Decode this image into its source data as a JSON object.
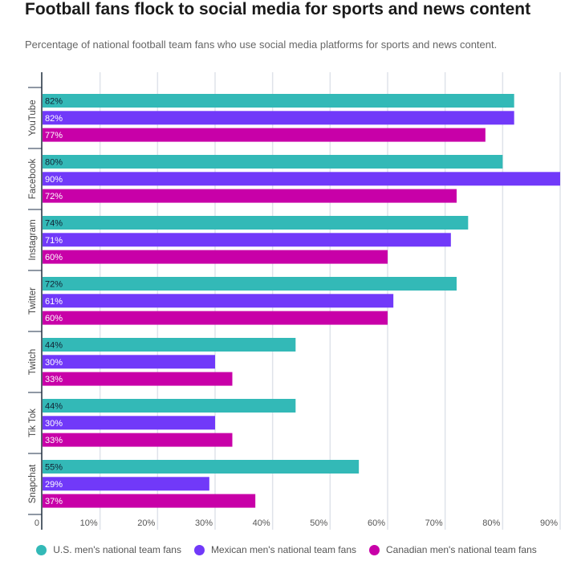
{
  "chart_data": {
    "type": "bar",
    "orientation": "horizontal",
    "title": "Football fans flock to social media for sports and news content",
    "subtitle": "Percentage of national football team fans who use social media platforms for sports and news content.",
    "categories": [
      "YouTube",
      "Facebook",
      "Instagram",
      "Twitter",
      "Twitch",
      "Tik Tok",
      "Snapchat"
    ],
    "series": [
      {
        "name": "U.S. men's national team fans",
        "color": "#33b9b7",
        "values": [
          82,
          80,
          74,
          72,
          44,
          44,
          55
        ]
      },
      {
        "name": "Mexican men's national team fans",
        "color": "#7139f9",
        "values": [
          82,
          90,
          71,
          61,
          30,
          30,
          29
        ]
      },
      {
        "name": "Canadian men's national team fans",
        "color": "#c800a8",
        "values": [
          77,
          72,
          60,
          60,
          33,
          33,
          37
        ]
      }
    ],
    "xlim": [
      0,
      90
    ],
    "xticks": [
      "0",
      "10%",
      "20%",
      "30%",
      "40%",
      "50%",
      "60%",
      "70%",
      "80%",
      "90%"
    ],
    "value_suffix": "%",
    "grid": true,
    "legend": "bottom"
  }
}
